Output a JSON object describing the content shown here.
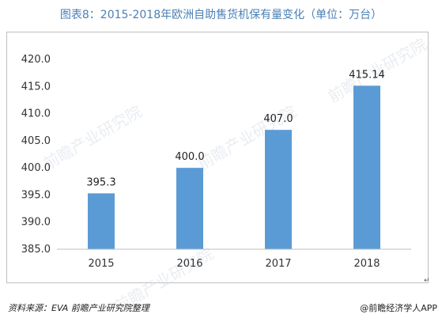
{
  "title": "图表8：2015-2018年欧洲自助售货机保有量变化（单位：万台）",
  "footer": {
    "source": "资料来源：EVA  前瞻产业研究院整理",
    "brand": "@前瞻经济学人APP",
    "return_mark": "↵"
  },
  "watermark_text": "前瞻产业研究院",
  "colors": {
    "bar": "#5b9bd5",
    "grid": "#d9d9d9",
    "title": "#4a7fb5"
  },
  "chart_data": {
    "type": "bar",
    "categories": [
      "2015",
      "2016",
      "2017",
      "2018"
    ],
    "values": [
      395.3,
      400.0,
      407.0,
      415.14
    ],
    "value_labels": [
      "395.3",
      "400.0",
      "407.0",
      "415.14"
    ],
    "ylim": [
      385.0,
      420.0
    ],
    "yticks": [
      "385.0",
      "390.0",
      "395.0",
      "400.0",
      "405.0",
      "410.0",
      "415.0",
      "420.0"
    ],
    "grid": false
  }
}
